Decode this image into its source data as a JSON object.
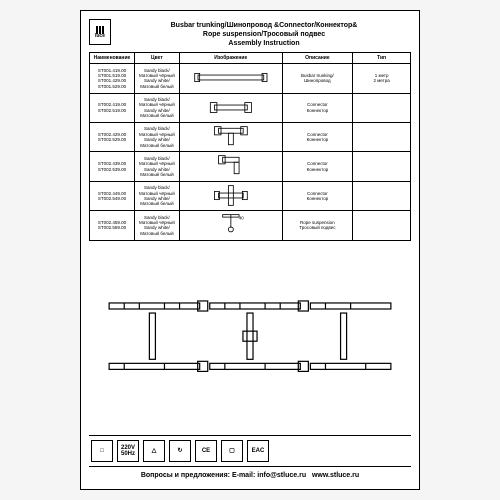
{
  "logo_text": "luce",
  "title_line1": "Busbar trunking/Шинопровод &Connector/Коннектор&",
  "title_line2": "Rope suspension/Тросовый подвес",
  "title_line3": "Assembly Instruction",
  "headers": {
    "name": "Наименование",
    "color": "Цвет",
    "image": "Изображение",
    "desc": "Описание",
    "type": "Тип"
  },
  "rows": [
    {
      "name": "ST001.419.00\nST001.519.00\nST001.429.00\nST001.529.00",
      "color": "Sandy black/\nМатовый чёрный\nSandy white/\nМатовый белый",
      "img": "track",
      "desc": "Busbar trunking/\nШинопровод",
      "type": "1 метр\n2 метра"
    },
    {
      "name": "ST002.419.00\nST002.519.00",
      "color": "Sandy black/\nМатовый чёрный\nSandy white/\nМатовый белый",
      "img": "i-conn",
      "desc": "Connector\nКоннектор",
      "type": ""
    },
    {
      "name": "ST002.429.00\nST002.529.00",
      "color": "Sandy black/\nМатовый чёрный\nSandy white/\nМатовый белый",
      "img": "t-conn",
      "desc": "Connector\nКоннектор",
      "type": ""
    },
    {
      "name": "ST002.439.00\nST002.539.00",
      "color": "Sandy black/\nМатовый чёрный\nSandy white/\nМатовый белый",
      "img": "l-conn",
      "desc": "Connector\nКоннектор",
      "type": ""
    },
    {
      "name": "ST002.449.00\nST002.549.00",
      "color": "Sandy black/\nМатовый чёрный\nSandy white/\nМатовый белый",
      "img": "x-conn",
      "desc": "Connector\nКоннектор",
      "type": ""
    },
    {
      "name": "ST002.459.00\nST002.559.00",
      "color": "Sandy black/\nМатовый чёрный\nSandy white/\nМатовый белый",
      "img": "rope",
      "desc": "Rope suspension\nТросовый подвес",
      "type": ""
    }
  ],
  "certs": [
    "□",
    "220V\n50Hz",
    "△",
    "↻",
    "CE",
    "▢",
    "EAC"
  ],
  "contact_label": "Вопросы и предложения: E-mail:",
  "contact_email": "info@stluce.ru",
  "contact_site": "www.stluce.ru",
  "styling": {
    "sheet_border": "#000000",
    "bg": "#ffffff",
    "page_bg": "#f5f5f5",
    "font_sizes": {
      "title": 7,
      "table": 4.5,
      "header": 5,
      "contact": 7
    },
    "stroke": "#000000",
    "stroke_width": 1
  }
}
